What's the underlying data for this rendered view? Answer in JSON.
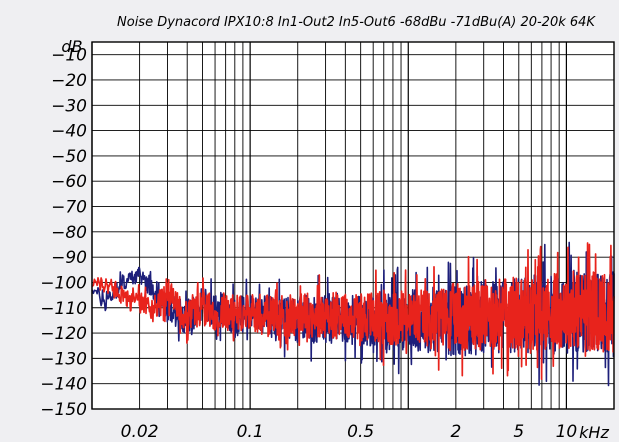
{
  "chart_data": {
    "type": "line",
    "title": "Noise Dynacord  IPX10:8  In1-Out2  In5-Out6  -68dBu  -71dBu(A)  20-20k  64K",
    "ylabel": "dB",
    "xlabel": "kHz",
    "x_scale": "log",
    "xlim": [
      0.01,
      20
    ],
    "ylim": [
      -150,
      -5
    ],
    "y_ticks": [
      -10,
      -20,
      -30,
      -40,
      -50,
      -60,
      -70,
      -80,
      -90,
      -100,
      -110,
      -120,
      -130,
      -140,
      -150
    ],
    "x_tick_labels": [
      {
        "value": 0.02,
        "label": "0.02"
      },
      {
        "value": 0.1,
        "label": "0.1"
      },
      {
        "value": 0.5,
        "label": "0.5"
      },
      {
        "value": 2,
        "label": "2"
      },
      {
        "value": 5,
        "label": "5"
      },
      {
        "value": 10,
        "label": "10"
      }
    ],
    "grid": true,
    "colors": {
      "series_a": "#1d1f7a",
      "series_b": "#e8231c",
      "grid": "#000000",
      "plot_bg": "#ffffff",
      "page_bg": "#efeff2"
    },
    "series": [
      {
        "color": "#1d1f7a",
        "x": [
          0.01,
          0.012,
          0.014,
          0.016,
          0.018,
          0.02,
          0.025,
          0.03,
          0.035,
          0.04,
          0.05,
          0.06,
          0.07,
          0.08,
          0.1,
          0.12,
          0.15,
          0.2,
          0.3,
          0.5,
          0.7,
          1,
          1.5,
          2,
          3,
          5,
          7,
          10,
          15,
          20
        ],
        "y": [
          -102,
          -108,
          -103,
          -100,
          -98,
          -97,
          -103,
          -110,
          -112,
          -114,
          -108,
          -112,
          -110,
          -114,
          -112,
          -113,
          -114,
          -114,
          -114,
          -115,
          -115,
          -115,
          -115,
          -115,
          -114,
          -113,
          -113,
          -112,
          -112,
          -111
        ],
        "spread": [
          2,
          4,
          4,
          3,
          3,
          3,
          5,
          6,
          6,
          7,
          7,
          7,
          7,
          8,
          8,
          8,
          9,
          9,
          10,
          10,
          12,
          12,
          13,
          14,
          15,
          16,
          16,
          16,
          16,
          17
        ]
      },
      {
        "color": "#e8231c",
        "x": [
          0.01,
          0.012,
          0.014,
          0.016,
          0.018,
          0.02,
          0.025,
          0.03,
          0.035,
          0.04,
          0.05,
          0.06,
          0.07,
          0.08,
          0.1,
          0.12,
          0.15,
          0.2,
          0.3,
          0.5,
          0.7,
          1,
          1.5,
          2,
          3,
          5,
          7,
          10,
          15,
          20
        ],
        "y": [
          -100,
          -101,
          -102,
          -106,
          -108,
          -108,
          -110,
          -104,
          -110,
          -112,
          -110,
          -112,
          -111,
          -112,
          -112,
          -113,
          -113,
          -113,
          -113,
          -113,
          -114,
          -114,
          -114,
          -113,
          -113,
          -112,
          -112,
          -111,
          -111,
          -112
        ],
        "spread": [
          2,
          3,
          3,
          4,
          4,
          4,
          6,
          6,
          6,
          7,
          7,
          7,
          7,
          7,
          7,
          8,
          8,
          9,
          9,
          10,
          11,
          11,
          12,
          13,
          14,
          15,
          15,
          15,
          16,
          16
        ]
      }
    ]
  }
}
